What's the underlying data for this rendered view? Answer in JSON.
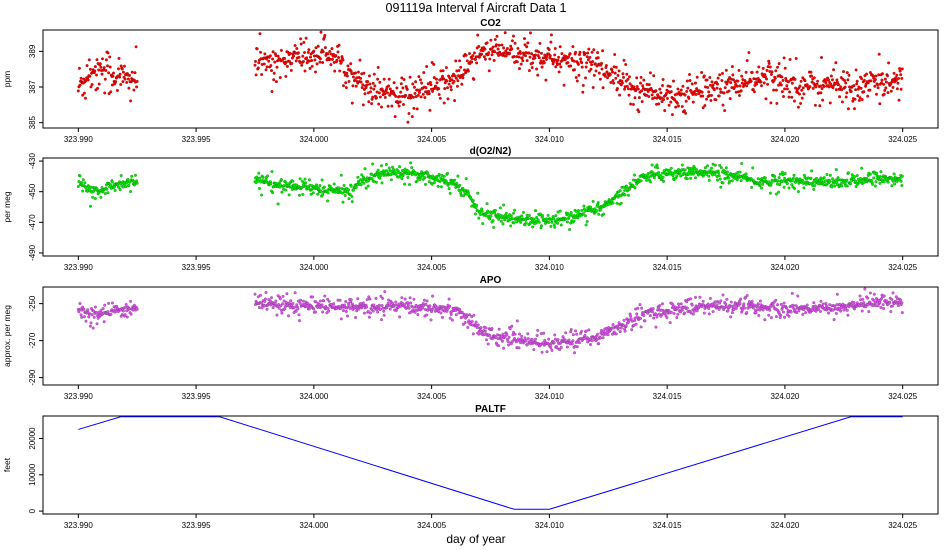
{
  "figure": {
    "title": "091119a   Interval f Aircraft Data 1",
    "xlabel": "day of year"
  },
  "chart_data": [
    {
      "type": "scatter",
      "title": "CO2",
      "ylabel": "ppm",
      "xlim": [
        323.9885,
        324.0265
      ],
      "ylim": [
        384.7,
        390.2
      ],
      "x_ticks": [
        "323.990",
        "323.995",
        "324.000",
        "324.005",
        "324.010",
        "324.015",
        "324.020",
        "324.025"
      ],
      "y_ticks": [
        "385",
        "387",
        "389"
      ],
      "color": "#ff0000",
      "segments": [
        {
          "x_start": 323.99,
          "x_end": 323.9925
        },
        {
          "x_start": 323.9975,
          "x_end": 324.025
        }
      ],
      "trend_x": [
        323.99,
        323.9905,
        323.991,
        323.9915,
        323.992,
        323.9925,
        323.9975,
        323.999,
        324.0,
        324.0005,
        324.001,
        324.002,
        324.003,
        324.004,
        324.005,
        324.006,
        324.007,
        324.008,
        324.009,
        324.01,
        324.011,
        324.012,
        324.013,
        324.014,
        324.015,
        324.016,
        324.017,
        324.018,
        324.019,
        324.02,
        324.021,
        324.022,
        324.023,
        324.024,
        324.025
      ],
      "trend_y": [
        387.0,
        387.8,
        388.2,
        387.6,
        387.5,
        387.4,
        388.3,
        388.6,
        388.7,
        389.0,
        388.5,
        387.3,
        386.8,
        386.5,
        387.0,
        387.4,
        388.9,
        389.0,
        388.8,
        388.6,
        388.5,
        388.1,
        387.2,
        386.8,
        386.5,
        386.5,
        386.9,
        387.2,
        387.4,
        387.4,
        387.1,
        387.2,
        386.9,
        387.3,
        387.4
      ],
      "scatter_sd": 0.7
    },
    {
      "type": "scatter",
      "title": "d(O2/N2)",
      "ylabel": "per meg",
      "xlim": [
        323.9885,
        324.0265
      ],
      "ylim": [
        -492,
        -428
      ],
      "x_ticks": [
        "323.990",
        "323.995",
        "324.000",
        "324.005",
        "324.010",
        "324.015",
        "324.020",
        "324.025"
      ],
      "y_ticks": [
        "-490",
        "-470",
        "-450",
        "-430"
      ],
      "color": "#00ee00",
      "segments": [
        {
          "x_start": 323.99,
          "x_end": 323.9925
        },
        {
          "x_start": 323.9975,
          "x_end": 324.025
        }
      ],
      "trend_x": [
        323.99,
        323.9905,
        323.991,
        323.9915,
        323.992,
        323.9925,
        323.9975,
        323.9985,
        323.9995,
        324.0005,
        324.0015,
        324.002,
        324.003,
        324.004,
        324.005,
        324.006,
        324.0065,
        324.007,
        324.008,
        324.009,
        324.01,
        324.011,
        324.012,
        324.013,
        324.014,
        324.015,
        324.016,
        324.017,
        324.018,
        324.019,
        324.02,
        324.021,
        324.022,
        324.023,
        324.024,
        324.025
      ],
      "trend_y": [
        -444,
        -450,
        -448,
        -446,
        -444,
        -443,
        -442,
        -446,
        -447,
        -449,
        -450,
        -443,
        -438,
        -437,
        -440,
        -445,
        -450,
        -463,
        -467,
        -468,
        -469,
        -467,
        -462,
        -452,
        -440,
        -438,
        -437,
        -438,
        -440,
        -444,
        -443,
        -443,
        -444,
        -443,
        -442,
        -441
      ],
      "scatter_sd": 3.2
    },
    {
      "type": "scatter",
      "title": "APO",
      "ylabel": "approx. per meg",
      "xlim": [
        323.9885,
        324.0265
      ],
      "ylim": [
        -294,
        -241
      ],
      "x_ticks": [
        "323.990",
        "323.995",
        "324.000",
        "324.005",
        "324.010",
        "324.015",
        "324.020",
        "324.025"
      ],
      "y_ticks": [
        "-290",
        "-270",
        "-250"
      ],
      "color": "#dd55ee",
      "segments": [
        {
          "x_start": 323.99,
          "x_end": 323.9925
        },
        {
          "x_start": 323.9975,
          "x_end": 324.025
        }
      ],
      "trend_x": [
        323.99,
        323.991,
        323.992,
        323.9925,
        323.9975,
        323.999,
        324.001,
        324.003,
        324.005,
        324.006,
        324.0065,
        324.007,
        324.008,
        324.009,
        324.01,
        324.011,
        324.012,
        324.013,
        324.014,
        324.016,
        324.018,
        324.02,
        324.022,
        324.023,
        324.024,
        324.025
      ],
      "trend_y": [
        -254,
        -256,
        -253,
        -252,
        -249,
        -251,
        -252,
        -251,
        -252,
        -253,
        -258,
        -265,
        -268,
        -270,
        -272,
        -270,
        -268,
        -262,
        -256,
        -252,
        -251,
        -253,
        -252,
        -251,
        -249,
        -249
      ],
      "scatter_sd": 3.0
    },
    {
      "type": "line",
      "title": "PALTF",
      "ylabel": "feet",
      "xlim": [
        323.9885,
        324.0265
      ],
      "ylim": [
        -800,
        26200
      ],
      "x_ticks": [
        "323.990",
        "323.995",
        "324.000",
        "324.005",
        "324.010",
        "324.015",
        "324.020",
        "324.025"
      ],
      "y_ticks": [
        "0",
        "10000",
        "20000"
      ],
      "color": "#0000ff",
      "x": [
        323.99,
        323.9918,
        323.996,
        324.0085,
        324.01,
        324.0228,
        324.025
      ],
      "y": [
        22500,
        26000,
        26000,
        500,
        500,
        26000,
        26000
      ]
    }
  ]
}
